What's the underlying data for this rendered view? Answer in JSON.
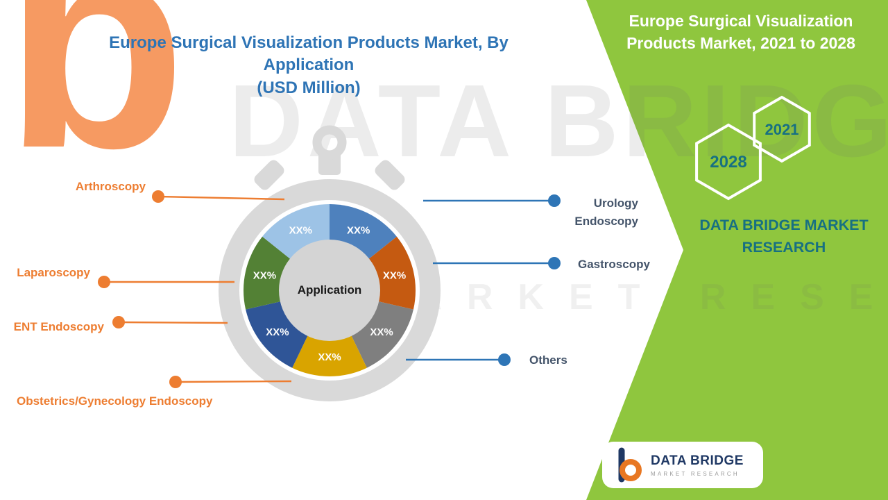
{
  "title": {
    "line1": "Europe Surgical Visualization Products Market, By Application",
    "line2": "(USD Million)"
  },
  "chart_data": {
    "type": "pie",
    "title": "Europe Surgical Visualization Products Market, By Application (USD Million)",
    "center_label": "Application",
    "segments": [
      {
        "label": "Urology Endoscopy",
        "display": "XX%",
        "color": "#4e81bd"
      },
      {
        "label": "Gastroscopy",
        "display": "XX%",
        "color": "#c55a11"
      },
      {
        "label": "Others",
        "display": "XX%",
        "color": "#7f7f7f"
      },
      {
        "label": "Obstetrics/Gynecology Endoscopy",
        "display": "XX%",
        "color": "#d9a400"
      },
      {
        "label": "ENT Endoscopy",
        "display": "XX%",
        "color": "#2f5597"
      },
      {
        "label": "Laparoscopy",
        "display": "XX%",
        "color": "#538135"
      },
      {
        "label": "Arthroscopy",
        "display": "XX%",
        "color": "#9dc3e6"
      }
    ]
  },
  "panel": {
    "heading": "Europe Surgical Visualization Products Market, 2021 to 2028",
    "year_left": "2028",
    "year_right": "2021",
    "brand": "DATA BRIDGE MARKET RESEARCH",
    "color": "#8fc63e",
    "accent_teal": "#177082"
  },
  "footer_logo": {
    "name": "DATA BRIDGE",
    "sub": "MARKET RESEARCH"
  },
  "watermark": {
    "line1": "DATA BRIDGE",
    "line2": "MARKET RESEARCH",
    "big_letter": "b"
  },
  "colors": {
    "title_blue": "#2e74b5",
    "left_legend_orange": "#ed7d31",
    "right_legend_slate": "#44546a",
    "leader_blue": "#2e75b6",
    "ring_gray": "#d9d9d9"
  }
}
